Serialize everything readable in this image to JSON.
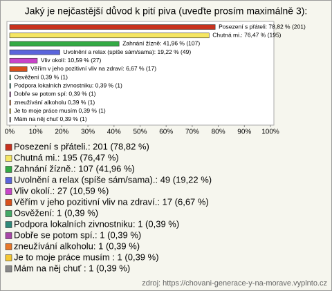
{
  "chart_data": {
    "type": "hbar",
    "title": "Jaký je nejčastější důvod k pití piva (uveďte prosím maximálně 3):",
    "values": [
      78.82,
      76.47,
      41.96,
      19.22,
      10.59,
      6.67,
      0.39,
      0.39,
      0.39,
      0.39,
      0.39,
      0.39
    ],
    "value_labels": [
      "Posezení s přáteli: 78,82 % (201)",
      "Chutná mi.: 76,47 % (195)",
      "Zahnání žízně: 41,96 % (107)",
      "Uvolnění a relax (spíše sám/sama): 19,22 % (49)",
      "Vliv okolí: 10,59 % (27)",
      "Věřím v jeho pozitivní vliv na zdraví: 6,67 % (17)",
      "Osvěžení 0,39 % (1)",
      "Podpora lokalních zivnostniku: 0,39 % (1)",
      "Dobře se potom spí: 0,39 % (1)",
      "zneužívání alkoholu 0,39 % (1)",
      "Je to moje práce musím  0,39 % (1)",
      "Mám na něj chuť  0,39 % (1)"
    ],
    "legend": [
      "Posezení s přáteli.: 201 (78,82 %)",
      "Chutná mi.: 195 (76,47 %)",
      "Zahnání žízně.: 107 (41,96 %)",
      "Uvolnění a relax (spíše sám/sama).: 49 (19,22 %)",
      "Vliv okolí.: 27 (10,59 %)",
      "Věřím v jeho pozitivní vliv na zdraví.: 17 (6,67 %)",
      "Osvěžení: 1 (0,39 %)",
      "Podpora lokalních zivnostniku: 1 (0,39 %)",
      "Dobře se potom spí.: 1 (0,39 %)",
      "zneužívání alkoholu: 1 (0,39 %)",
      "Je to moje práce musím : 1 (0,39 %)",
      "Mám na něj chuť : 1 (0,39 %)"
    ],
    "colors": [
      "#c8321e",
      "#f5e663",
      "#33aa44",
      "#5a64dc",
      "#c844c8",
      "#d8501a",
      "#44aa66",
      "#2f8a7a",
      "#a848a8",
      "#e8782a",
      "#f5c832",
      "#888888"
    ],
    "xlim": [
      0,
      100
    ],
    "xticks": [
      {
        "value": 0,
        "label": "0%"
      },
      {
        "value": 10,
        "label": "10%"
      },
      {
        "value": 20,
        "label": "20%"
      },
      {
        "value": 30,
        "label": "30%"
      },
      {
        "value": 40,
        "label": "40%"
      },
      {
        "value": 50,
        "label": "50%"
      },
      {
        "value": 60,
        "label": "60%"
      },
      {
        "value": 70,
        "label": "70%"
      },
      {
        "value": 80,
        "label": "80%"
      },
      {
        "value": 90,
        "label": "90%"
      },
      {
        "value": 100,
        "label": "100%"
      }
    ],
    "source": "zdroj: https://chovani-generace-y-na-morave.vyplnto.cz"
  }
}
